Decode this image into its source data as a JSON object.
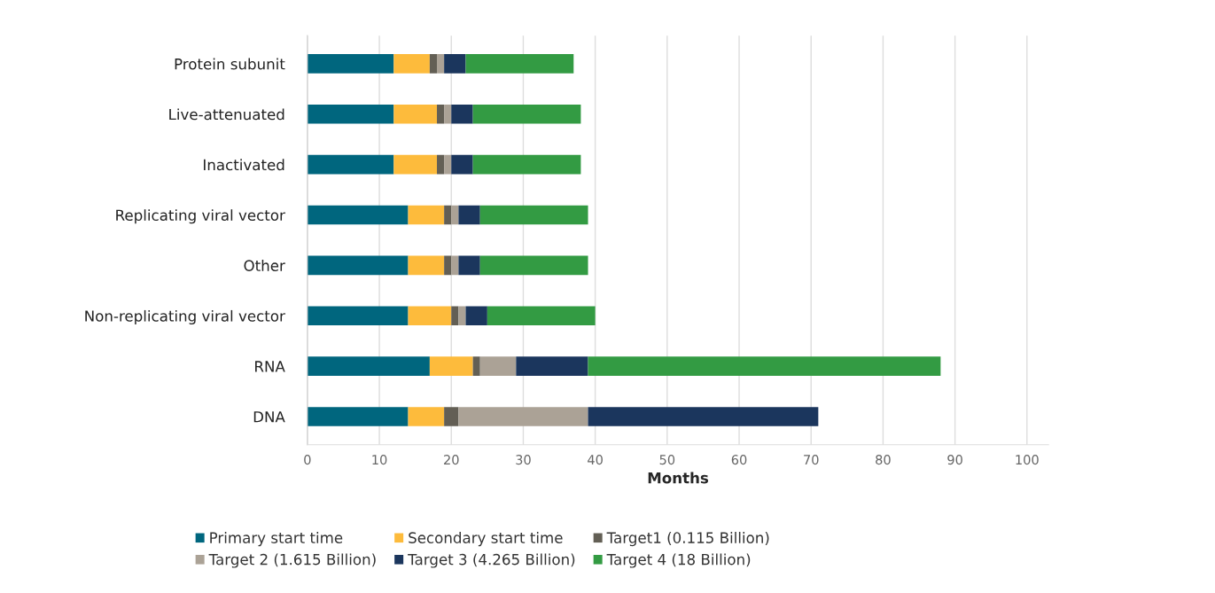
{
  "chart_data": {
    "type": "bar",
    "orientation": "horizontal",
    "stacked": true,
    "xlabel": "Months",
    "categories": [
      "Protein subunit",
      "Live-attenuated",
      "Inactivated",
      "Replicating viral vector",
      "Other",
      "Non-replicating viral vector",
      "RNA",
      "DNA"
    ],
    "series": [
      {
        "name": "Primary start time",
        "color": "#00667e",
        "values": [
          12,
          12,
          12,
          14,
          14,
          14,
          17,
          14
        ]
      },
      {
        "name": "Secondary start time",
        "color": "#fdbb3c",
        "values": [
          5,
          6,
          6,
          5,
          5,
          6,
          6,
          5
        ]
      },
      {
        "name": "Target1 (0.115 Billion)",
        "color": "#635f55",
        "values": [
          1,
          1,
          1,
          1,
          1,
          1,
          1,
          2
        ]
      },
      {
        "name": "Target 2 (1.615 Billion)",
        "color": "#aba296",
        "values": [
          1,
          1,
          1,
          1,
          1,
          1,
          5,
          18
        ]
      },
      {
        "name": "Target 3 (4.265 Billion)",
        "color": "#1b365d",
        "values": [
          3,
          3,
          3,
          3,
          3,
          3,
          10,
          32
        ]
      },
      {
        "name": "Target 4 (18 Billion)",
        "color": "#339b43",
        "values": [
          15,
          15,
          15,
          15,
          15,
          15,
          49,
          null
        ]
      }
    ],
    "xlim": [
      0,
      103
    ],
    "xticks": [
      0,
      10,
      20,
      30,
      40,
      50,
      60,
      70,
      80,
      90,
      100
    ],
    "grid": "x",
    "legend": "bottom"
  }
}
